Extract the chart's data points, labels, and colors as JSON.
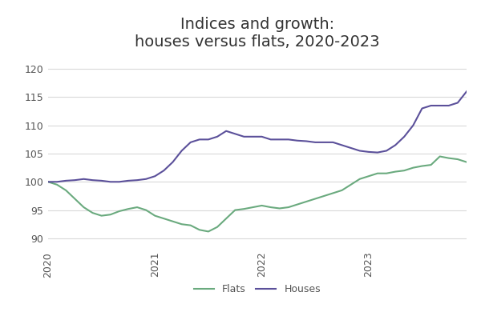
{
  "title": "Indices and growth:\nhouses versus flats, 2020-2023",
  "title_fontsize": 14,
  "flats_color": "#6aaa7e",
  "houses_color": "#5b509a",
  "background_color": "#ffffff",
  "ylim": [
    88,
    122
  ],
  "yticks": [
    90,
    95,
    100,
    105,
    110,
    115,
    120
  ],
  "grid_color": "#d8d8d8",
  "legend_labels": [
    "Flats",
    "Houses"
  ],
  "x_tick_positions": [
    0,
    12,
    24,
    36
  ],
  "x_tick_labels": [
    "2020",
    "2021",
    "2022",
    "2023"
  ],
  "flats": [
    100.0,
    99.5,
    98.5,
    97.0,
    95.5,
    94.5,
    94.0,
    94.2,
    94.8,
    95.2,
    95.5,
    95.0,
    94.0,
    93.5,
    93.0,
    92.5,
    92.3,
    91.5,
    91.2,
    92.0,
    93.5,
    95.0,
    95.2,
    95.5,
    95.8,
    95.5,
    95.3,
    95.5,
    96.0,
    96.5,
    97.0,
    97.5,
    98.0,
    98.5,
    99.5,
    100.5,
    101.0,
    101.5,
    101.5,
    101.8,
    102.0,
    102.5,
    102.8,
    103.0,
    104.5,
    104.2,
    104.0,
    103.5
  ],
  "houses": [
    100.0,
    100.0,
    100.2,
    100.3,
    100.5,
    100.3,
    100.2,
    100.0,
    100.0,
    100.2,
    100.3,
    100.5,
    101.0,
    102.0,
    103.5,
    105.5,
    107.0,
    107.5,
    107.5,
    108.0,
    109.0,
    108.5,
    108.0,
    108.0,
    108.0,
    107.5,
    107.5,
    107.5,
    107.3,
    107.2,
    107.0,
    107.0,
    107.0,
    106.5,
    106.0,
    105.5,
    105.3,
    105.2,
    105.5,
    106.5,
    108.0,
    110.0,
    113.0,
    113.5,
    113.5,
    113.5,
    114.0,
    116.0
  ]
}
